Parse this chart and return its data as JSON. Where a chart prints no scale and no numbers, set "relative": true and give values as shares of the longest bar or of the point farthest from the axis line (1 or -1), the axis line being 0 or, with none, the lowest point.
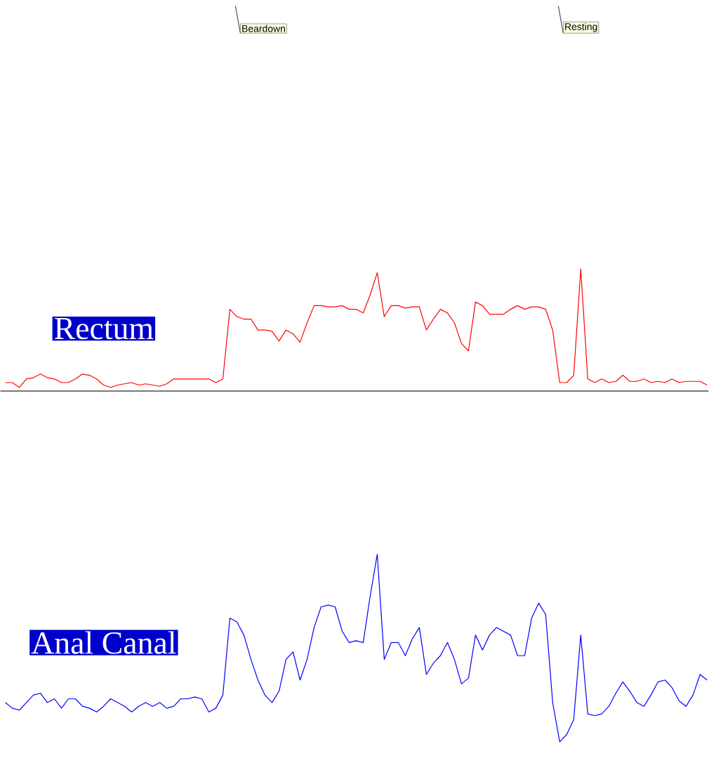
{
  "chart_data": [
    {
      "type": "line",
      "title": "Rectum",
      "relative": true,
      "color": "#ff0000",
      "categories": [
        null,
        null,
        null,
        null,
        null,
        null,
        null,
        null,
        null,
        null,
        null,
        null,
        null,
        null,
        null,
        null,
        null,
        null,
        null,
        null,
        null,
        null,
        null,
        null,
        null,
        null,
        null,
        null,
        null,
        null,
        null,
        null,
        null,
        null,
        null,
        null,
        null,
        null,
        null,
        null,
        null,
        null,
        null,
        null,
        null,
        null,
        null,
        null,
        null,
        null,
        null,
        null,
        null,
        null,
        null,
        null,
        null,
        null,
        null,
        null,
        null,
        null,
        null,
        null,
        null,
        null,
        null,
        null,
        null,
        null,
        null,
        null,
        null,
        null,
        null,
        null,
        null,
        null,
        null,
        null,
        null,
        null,
        null,
        null,
        null,
        null,
        null,
        null,
        null,
        null,
        null,
        null,
        null,
        null,
        null,
        null,
        null,
        null,
        null,
        null,
        null
      ],
      "values": [
        0.07,
        0.07,
        0.03,
        0.1,
        0.11,
        0.14,
        0.11,
        0.1,
        0.07,
        0.07,
        0.1,
        0.14,
        0.13,
        0.1,
        0.05,
        0.03,
        0.05,
        0.06,
        0.07,
        0.05,
        0.06,
        0.05,
        0.04,
        0.06,
        0.1,
        0.1,
        0.1,
        0.1,
        0.1,
        0.1,
        0.07,
        0.1,
        0.67,
        0.61,
        0.59,
        0.59,
        0.5,
        0.5,
        0.49,
        0.41,
        0.5,
        0.47,
        0.4,
        0.56,
        0.7,
        0.7,
        0.69,
        0.69,
        0.7,
        0.67,
        0.67,
        0.64,
        0.79,
        0.97,
        0.61,
        0.7,
        0.7,
        0.68,
        0.69,
        0.69,
        0.5,
        0.59,
        0.67,
        0.64,
        0.56,
        0.39,
        0.33,
        0.73,
        0.7,
        0.63,
        0.63,
        0.63,
        0.67,
        0.7,
        0.67,
        0.69,
        0.69,
        0.67,
        0.5,
        0.07,
        0.07,
        0.13,
        1,
        0.1,
        0.07,
        0.1,
        0.07,
        0.08,
        0.13,
        0.08,
        0.08,
        0.1,
        0.07,
        0.08,
        0.07,
        0.1,
        0.07,
        0.08,
        0.08,
        0.08,
        0.05
      ],
      "annotations": [
        "Beardown",
        "Resting"
      ]
    },
    {
      "type": "line",
      "title": "Anal Canal",
      "relative": true,
      "color": "#0000ff",
      "categories": [
        null,
        null,
        null,
        null,
        null,
        null,
        null,
        null,
        null,
        null,
        null,
        null,
        null,
        null,
        null,
        null,
        null,
        null,
        null,
        null,
        null,
        null,
        null,
        null,
        null,
        null,
        null,
        null,
        null,
        null,
        null,
        null,
        null,
        null,
        null,
        null,
        null,
        null,
        null,
        null,
        null,
        null,
        null,
        null,
        null,
        null,
        null,
        null,
        null,
        null,
        null,
        null,
        null,
        null,
        null,
        null,
        null,
        null,
        null,
        null,
        null,
        null,
        null,
        null,
        null,
        null,
        null,
        null,
        null,
        null,
        null,
        null,
        null,
        null,
        null,
        null,
        null,
        null,
        null,
        null,
        null,
        null,
        null,
        null,
        null,
        null,
        null,
        null,
        null,
        null,
        null,
        null,
        null,
        null,
        null,
        null,
        null,
        null,
        null,
        null,
        null
      ],
      "values": [
        0.21,
        0.18,
        0.17,
        0.21,
        0.25,
        0.26,
        0.21,
        0.23,
        0.18,
        0.23,
        0.23,
        0.19,
        0.18,
        0.16,
        0.19,
        0.23,
        0.21,
        0.19,
        0.16,
        0.19,
        0.21,
        0.19,
        0.21,
        0.18,
        0.19,
        0.23,
        0.23,
        0.24,
        0.23,
        0.16,
        0.18,
        0.25,
        0.66,
        0.64,
        0.57,
        0.44,
        0.33,
        0.25,
        0.21,
        0.27,
        0.44,
        0.48,
        0.33,
        0.44,
        0.61,
        0.72,
        0.73,
        0.72,
        0.59,
        0.53,
        0.54,
        0.53,
        0.78,
        1,
        0.44,
        0.53,
        0.53,
        0.46,
        0.55,
        0.61,
        0.36,
        0.42,
        0.46,
        0.53,
        0.44,
        0.31,
        0.34,
        0.57,
        0.49,
        0.57,
        0.61,
        0.59,
        0.57,
        0.46,
        0.46,
        0.66,
        0.74,
        0.68,
        0.21,
        0,
        0.04,
        0.12,
        0.57,
        0.15,
        0.14,
        0.15,
        0.19,
        0.26,
        0.32,
        0.27,
        0.21,
        0.19,
        0.25,
        0.32,
        0.33,
        0.29,
        0.22,
        0.19,
        0.25,
        0.36,
        0.33
      ]
    }
  ]
}
